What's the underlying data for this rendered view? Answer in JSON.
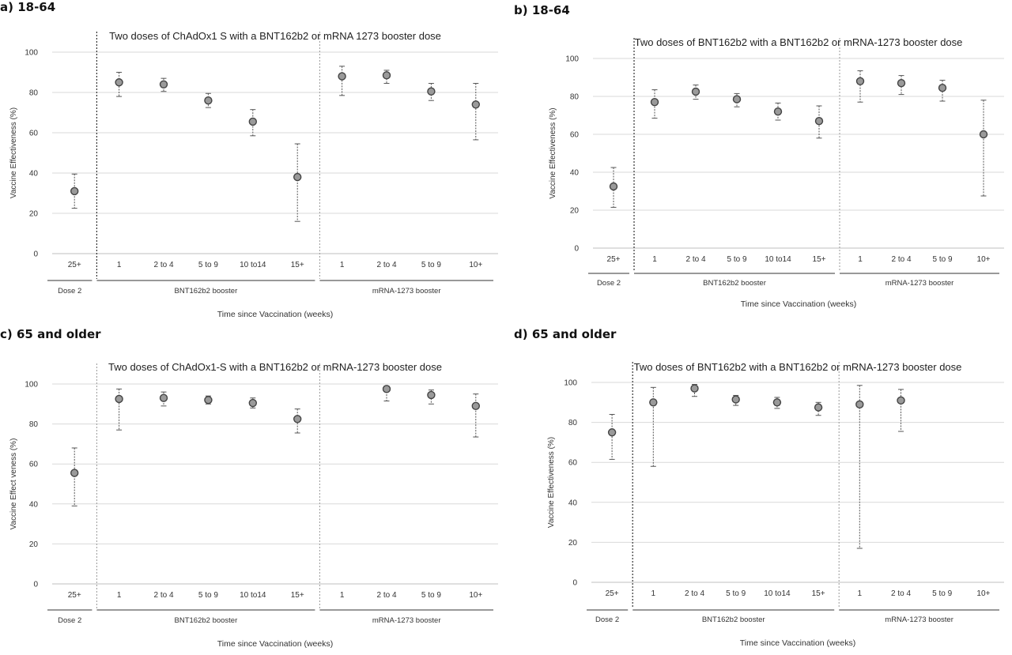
{
  "chart_data": [
    {
      "type": "scatter",
      "panel_label": "a) 18-64",
      "title": "Two doses of ChAdOx1 S with a BNT162b2 or mRNA 1273 booster dose",
      "ylabel": "Vaccine Effectiveness (%)",
      "xlabel": "Time since Vaccination (weeks)",
      "ylim": [
        0,
        100
      ],
      "yticks": [
        0,
        20,
        40,
        60,
        80,
        100
      ],
      "grid": true,
      "categories": [
        "25+",
        "1",
        "2 to 4",
        "5 to 9",
        "10 to14",
        "15+",
        "1",
        "2 to 4",
        "5 to 9",
        "10+"
      ],
      "groups": [
        {
          "label": "Dose 2",
          "start": 0,
          "end": 0
        },
        {
          "label": "BNT162b2 booster",
          "start": 1,
          "end": 5
        },
        {
          "label": "mRNA-1273 booster",
          "start": 6,
          "end": 9
        }
      ],
      "separators": [
        {
          "after": 0,
          "style": "strong"
        },
        {
          "after": 5,
          "style": "light"
        }
      ],
      "series": [
        {
          "values": [
            31,
            85,
            84,
            76,
            65.5,
            38,
            88,
            88.5,
            80.5,
            74
          ],
          "lower": [
            22.5,
            78,
            80.5,
            72.5,
            58.5,
            16,
            78.5,
            84.5,
            76,
            56.5
          ],
          "upper": [
            39.5,
            90,
            87,
            79.5,
            71.5,
            54.5,
            93,
            91,
            84.5,
            84.5
          ]
        }
      ]
    },
    {
      "type": "scatter",
      "panel_label": "b) 18-64",
      "title": "Two doses of BNT162b2 with a BNT162b2 or mRNA-1273 booster dose",
      "ylabel": "Vaccine Effectiveness (%)",
      "xlabel": "Time since Vaccination (weeks)",
      "ylim": [
        0,
        100
      ],
      "yticks": [
        0,
        20,
        40,
        60,
        80,
        100
      ],
      "grid": true,
      "categories": [
        "25+",
        "1",
        "2 to 4",
        "5 to 9",
        "10 to14",
        "15+",
        "1",
        "2 to 4",
        "5 to 9",
        "10+"
      ],
      "groups": [
        {
          "label": "Dose 2",
          "start": 0,
          "end": 0
        },
        {
          "label": "BNT162b2 booster",
          "start": 1,
          "end": 5
        },
        {
          "label": "mRNA-1273 booster",
          "start": 6,
          "end": 9
        }
      ],
      "separators": [
        {
          "after": 0,
          "style": "strong"
        },
        {
          "after": 5,
          "style": "light"
        }
      ],
      "series": [
        {
          "values": [
            32.5,
            77,
            82.5,
            78.5,
            72,
            67,
            88,
            87,
            84.5,
            60
          ],
          "lower": [
            21.5,
            68.5,
            78.5,
            74.5,
            67.5,
            58,
            77,
            81,
            77.5,
            27.5
          ],
          "upper": [
            42.5,
            83.5,
            86,
            81.5,
            76.5,
            75,
            93.5,
            91,
            88.5,
            78
          ]
        }
      ]
    },
    {
      "type": "scatter",
      "panel_label": "c) 65 and older",
      "title": "Two doses of ChAdOx1-S with a BNT162b2 or mRNA-1273 booster dose",
      "ylabel": "Vaccine Effect veness (%)",
      "xlabel": "Time since Vaccination (weeks)",
      "ylim": [
        0,
        100
      ],
      "yticks": [
        0,
        20,
        40,
        60,
        80,
        100
      ],
      "grid": true,
      "categories": [
        "25+",
        "1",
        "2 to 4",
        "5 to 9",
        "10 to14",
        "15+",
        "1",
        "2 to 4",
        "5 to 9",
        "10+"
      ],
      "groups": [
        {
          "label": "Dose 2",
          "start": 0,
          "end": 0
        },
        {
          "label": "BNT162b2 booster",
          "start": 1,
          "end": 5
        },
        {
          "label": "mRNA-1273 booster",
          "start": 6,
          "end": 9
        }
      ],
      "separators": [
        {
          "after": 0,
          "style": "light"
        },
        {
          "after": 5,
          "style": "light"
        }
      ],
      "series": [
        {
          "values": [
            55.5,
            92.5,
            93,
            92,
            90.5,
            82.5,
            null,
            97.5,
            94.5,
            89
          ],
          "lower": [
            39,
            77,
            89,
            90,
            88,
            75.5,
            null,
            91.5,
            90,
            73.5
          ],
          "upper": [
            68,
            97.5,
            96,
            94,
            93,
            87.5,
            null,
            99,
            97,
            95
          ]
        }
      ]
    },
    {
      "type": "scatter",
      "panel_label": "d) 65 and older",
      "title": "Two doses of BNT162b2 with a BNT162b2 or mRNA-1273 booster dose",
      "ylabel": "Vaccine Effectiveness (%)",
      "xlabel": "Time since Vaccination (weeks)",
      "ylim": [
        0,
        100
      ],
      "yticks": [
        0,
        20,
        40,
        60,
        80,
        100
      ],
      "grid": true,
      "categories": [
        "25+",
        "1",
        "2 to 4",
        "5 to 9",
        "10 to14",
        "15+",
        "1",
        "2 to 4",
        "5 to 9",
        "10+"
      ],
      "groups": [
        {
          "label": "Dose 2",
          "start": 0,
          "end": 0
        },
        {
          "label": "BNT162b2 booster",
          "start": 1,
          "end": 5
        },
        {
          "label": "mRNA-1273 booster",
          "start": 6,
          "end": 9
        }
      ],
      "separators": [
        {
          "after": 0,
          "style": "strong"
        },
        {
          "after": 5,
          "style": "light"
        }
      ],
      "series": [
        {
          "values": [
            75,
            90,
            97,
            91.5,
            90,
            87.5,
            89,
            91,
            null,
            null
          ],
          "lower": [
            61.5,
            58,
            93,
            88.5,
            87,
            83.5,
            17,
            75.5,
            null,
            null
          ],
          "upper": [
            84,
            97.5,
            99,
            93.5,
            92.5,
            90,
            98.5,
            96.5,
            null,
            null
          ]
        }
      ]
    }
  ]
}
